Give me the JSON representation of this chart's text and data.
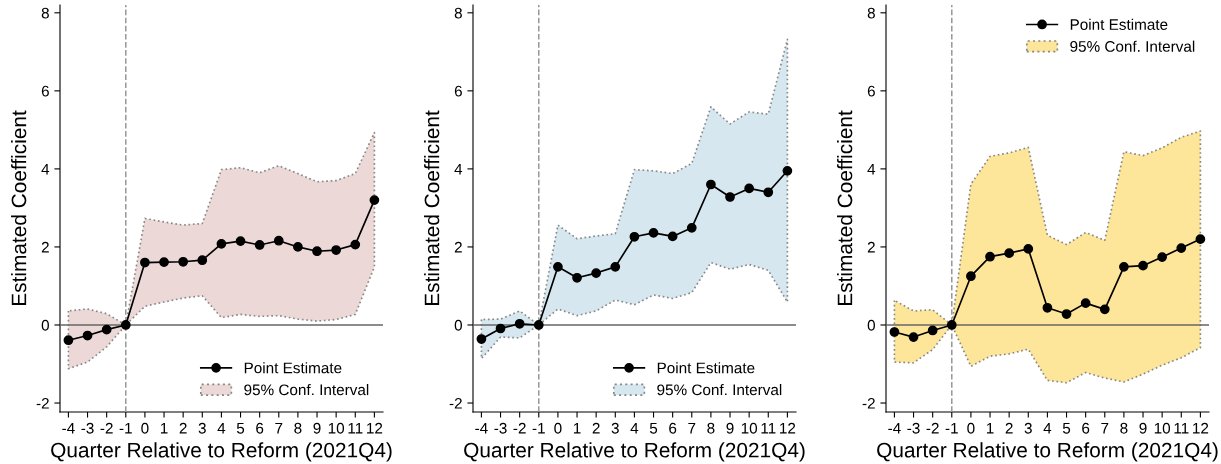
{
  "chart_data": [
    {
      "type": "line",
      "xlabel": "Quarter Relative to Reform (2021Q4)",
      "ylabel": "Estimated Coefficient",
      "annotations": [
        "95% Conf. Interval"
      ],
      "x": [
        -4,
        -3,
        -2,
        -1,
        0,
        1,
        2,
        3,
        4,
        5,
        6,
        7,
        8,
        9,
        10,
        11,
        12
      ],
      "xlim": [
        -4.44,
        12.45
      ],
      "xticks": [
        -4,
        -3,
        -2,
        -1,
        0,
        1,
        2,
        3,
        4,
        5,
        6,
        7,
        8,
        9,
        10,
        11,
        12
      ],
      "ylim": [
        -2.23,
        8.2
      ],
      "yticks": [
        -2,
        0,
        2,
        4,
        6,
        8
      ],
      "grid": false,
      "legend": "bottom right",
      "marker": "circle",
      "line_style": "solid",
      "ref_lines": [
        {
          "axis": "y",
          "value": 0,
          "color": "#666666",
          "line_style": "solid"
        },
        {
          "axis": "x",
          "value": -1,
          "color": "#999999",
          "line_style": "dashed"
        }
      ],
      "series": [
        {
          "name": "Point Estimate",
          "color": "#000000",
          "colors": [
            "#ecd9d7",
            "#ecd9d7",
            "#ecd9d7",
            "#ecd9d7",
            "#ecd9d7",
            "#ecd9d7",
            "#ecd9d7",
            "#ecd9d7",
            "#ecd9d7",
            "#ecd9d7",
            "#ecd9d7",
            "#ecd9d7",
            "#ecd9d7",
            "#ecd9d7",
            "#ecd9d7",
            "#ecd9d7",
            "#ecd9d7"
          ],
          "values": [
            -0.39,
            -0.27,
            -0.12,
            0,
            1.6,
            1.61,
            1.62,
            1.66,
            2.08,
            2.15,
            2.05,
            2.16,
            2.0,
            1.89,
            1.92,
            2.06,
            3.2
          ],
          "upper": [
            0.36,
            0.41,
            0.29,
            0,
            2.73,
            2.64,
            2.56,
            2.6,
            3.98,
            4.03,
            3.9,
            4.08,
            3.88,
            3.67,
            3.7,
            3.88,
            4.93
          ],
          "lower": [
            -1.12,
            -0.95,
            -0.56,
            0,
            0.48,
            0.59,
            0.69,
            0.75,
            0.19,
            0.27,
            0.22,
            0.24,
            0.15,
            0.1,
            0.14,
            0.27,
            1.49
          ]
        }
      ]
    },
    {
      "type": "line",
      "xlabel": "Quarter Relative to Reform (2021Q4)",
      "ylabel": "Estimated Coefficient",
      "annotations": [
        "95% Conf. Interval"
      ],
      "x": [
        -4,
        -3,
        -2,
        -1,
        0,
        1,
        2,
        3,
        4,
        5,
        6,
        7,
        8,
        9,
        10,
        11,
        12
      ],
      "xlim": [
        -4.44,
        12.45
      ],
      "xticks": [
        -4,
        -3,
        -2,
        -1,
        0,
        1,
        2,
        3,
        4,
        5,
        6,
        7,
        8,
        9,
        10,
        11,
        12
      ],
      "ylim": [
        -2.23,
        8.2
      ],
      "yticks": [
        -2,
        0,
        2,
        4,
        6,
        8
      ],
      "grid": false,
      "legend": "bottom right",
      "marker": "circle",
      "line_style": "solid",
      "ref_lines": [
        {
          "axis": "y",
          "value": 0,
          "color": "#666666",
          "line_style": "solid"
        },
        {
          "axis": "x",
          "value": -1,
          "color": "#999999",
          "line_style": "dashed"
        }
      ],
      "series": [
        {
          "name": "Point Estimate",
          "color": "#000000",
          "colors": [
            "#d6e7ef",
            "#d6e7ef",
            "#d6e7ef",
            "#d6e7ef",
            "#d6e7ef",
            "#d6e7ef",
            "#d6e7ef",
            "#d6e7ef",
            "#d6e7ef",
            "#d6e7ef",
            "#d6e7ef",
            "#d6e7ef",
            "#d6e7ef",
            "#d6e7ef",
            "#d6e7ef",
            "#d6e7ef",
            "#d6e7ef"
          ],
          "values": [
            -0.36,
            -0.09,
            0.03,
            0,
            1.49,
            1.21,
            1.33,
            1.49,
            2.26,
            2.36,
            2.27,
            2.49,
            3.6,
            3.28,
            3.5,
            3.4,
            3.95
          ],
          "upper": [
            0.14,
            0.15,
            0.36,
            0,
            2.56,
            2.21,
            2.28,
            2.34,
            3.98,
            3.95,
            3.88,
            4.14,
            5.59,
            5.15,
            5.46,
            5.4,
            7.32
          ],
          "lower": [
            -0.86,
            -0.31,
            -0.33,
            0,
            0.41,
            0.24,
            0.36,
            0.64,
            0.52,
            0.77,
            0.68,
            0.83,
            1.6,
            1.43,
            1.55,
            1.4,
            0.59
          ]
        }
      ]
    },
    {
      "type": "line",
      "xlabel": "Quarter Relative to Reform (2021Q4)",
      "ylabel": "Estimated Coefficient",
      "annotations": [
        "95% Conf. Interval"
      ],
      "x": [
        -4,
        -3,
        -2,
        -1,
        0,
        1,
        2,
        3,
        4,
        5,
        6,
        7,
        8,
        9,
        10,
        11,
        12
      ],
      "xlim": [
        -4.44,
        12.45
      ],
      "xticks": [
        -4,
        -3,
        -2,
        -1,
        0,
        1,
        2,
        3,
        4,
        5,
        6,
        7,
        8,
        9,
        10,
        11,
        12
      ],
      "ylim": [
        -2.23,
        8.2
      ],
      "yticks": [
        -2,
        0,
        2,
        4,
        6,
        8
      ],
      "grid": false,
      "legend": "top right",
      "marker": "circle",
      "line_style": "solid",
      "ref_lines": [
        {
          "axis": "y",
          "value": 0,
          "color": "#666666",
          "line_style": "solid"
        },
        {
          "axis": "x",
          "value": -1,
          "color": "#999999",
          "line_style": "dashed"
        }
      ],
      "series": [
        {
          "name": "Point Estimate",
          "color": "#000000",
          "colors": [
            "#fde59a",
            "#fde59a",
            "#fde59a",
            "#fde59a",
            "#fde59a",
            "#fde59a",
            "#fde59a",
            "#fde59a",
            "#fde59a",
            "#fde59a",
            "#fde59a",
            "#fde59a",
            "#fde59a",
            "#fde59a",
            "#fde59a",
            "#fde59a",
            "#fde59a"
          ],
          "values": [
            -0.18,
            -0.31,
            -0.14,
            0,
            1.25,
            1.75,
            1.84,
            1.95,
            0.44,
            0.28,
            0.56,
            0.4,
            1.49,
            1.52,
            1.74,
            1.97,
            2.2
          ],
          "upper": [
            0.63,
            0.36,
            0.39,
            0,
            3.61,
            4.32,
            4.41,
            4.55,
            2.3,
            2.06,
            2.37,
            2.17,
            4.44,
            4.34,
            4.54,
            4.81,
            4.97
          ],
          "lower": [
            -0.95,
            -0.97,
            -0.63,
            0,
            -1.06,
            -0.8,
            -0.74,
            -0.62,
            -1.42,
            -1.48,
            -1.22,
            -1.36,
            -1.46,
            -1.26,
            -1.03,
            -0.84,
            -0.58
          ]
        }
      ]
    }
  ]
}
